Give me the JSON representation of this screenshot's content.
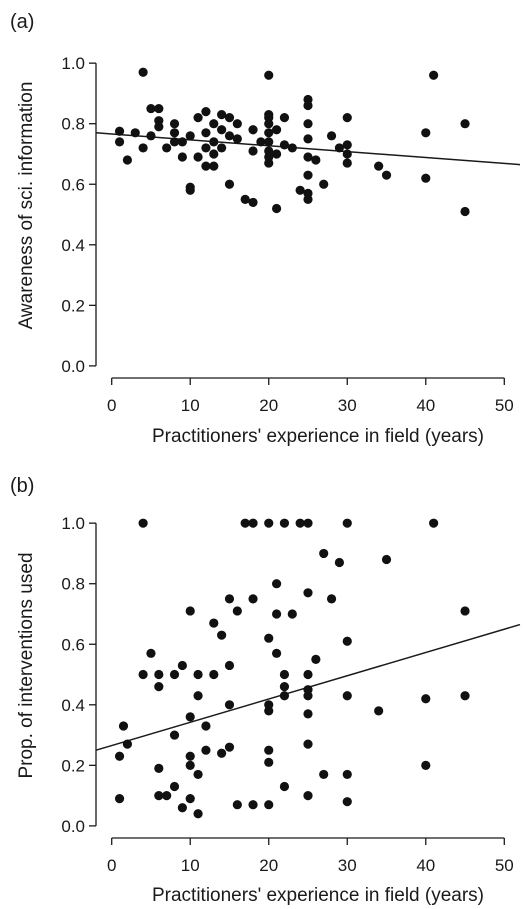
{
  "chart_data": [
    {
      "panel": "(a)",
      "type": "scatter",
      "xlabel": "Practitioners' experience in field (years)",
      "ylabel": "Awareness of sci. information",
      "xlim": [
        -2,
        52
      ],
      "ylim": [
        -0.04,
        1.06
      ],
      "xticks": [
        0,
        10,
        20,
        30,
        40,
        50
      ],
      "yticks": [
        0.0,
        0.2,
        0.4,
        0.6,
        0.8,
        1.0
      ],
      "ytick_labels": [
        "0.0",
        "0.2",
        "0.4",
        "0.6",
        "0.8",
        "1.0"
      ],
      "fit_line": {
        "x": [
          -2,
          52
        ],
        "y": [
          0.77,
          0.665
        ]
      },
      "points": [
        [
          1,
          0.775
        ],
        [
          1,
          0.74
        ],
        [
          2,
          0.68
        ],
        [
          3,
          0.77
        ],
        [
          4,
          0.97
        ],
        [
          4,
          0.72
        ],
        [
          5,
          0.85
        ],
        [
          5,
          0.76
        ],
        [
          6,
          0.85
        ],
        [
          6,
          0.81
        ],
        [
          6,
          0.79
        ],
        [
          7,
          0.72
        ],
        [
          8,
          0.8
        ],
        [
          8,
          0.77
        ],
        [
          8,
          0.74
        ],
        [
          9,
          0.74
        ],
        [
          9,
          0.69
        ],
        [
          10,
          0.76
        ],
        [
          10,
          0.58
        ],
        [
          10,
          0.59
        ],
        [
          11,
          0.82
        ],
        [
          11,
          0.69
        ],
        [
          12,
          0.84
        ],
        [
          12,
          0.77
        ],
        [
          12,
          0.66
        ],
        [
          12,
          0.72
        ],
        [
          13,
          0.8
        ],
        [
          13,
          0.74
        ],
        [
          13,
          0.66
        ],
        [
          13,
          0.7
        ],
        [
          14,
          0.83
        ],
        [
          14,
          0.78
        ],
        [
          14,
          0.72
        ],
        [
          15,
          0.82
        ],
        [
          15,
          0.76
        ],
        [
          15,
          0.6
        ],
        [
          16,
          0.8
        ],
        [
          16,
          0.75
        ],
        [
          17,
          0.55
        ],
        [
          18,
          0.78
        ],
        [
          18,
          0.71
        ],
        [
          18,
          0.54
        ],
        [
          19,
          0.74
        ],
        [
          20,
          0.96
        ],
        [
          20,
          0.83
        ],
        [
          20,
          0.82
        ],
        [
          20,
          0.8
        ],
        [
          20,
          0.77
        ],
        [
          20,
          0.74
        ],
        [
          20,
          0.71
        ],
        [
          20,
          0.69
        ],
        [
          20,
          0.67
        ],
        [
          21,
          0.78
        ],
        [
          21,
          0.7
        ],
        [
          21,
          0.52
        ],
        [
          22,
          0.82
        ],
        [
          22,
          0.73
        ],
        [
          23,
          0.72
        ],
        [
          24,
          0.58
        ],
        [
          25,
          0.88
        ],
        [
          25,
          0.86
        ],
        [
          25,
          0.8
        ],
        [
          25,
          0.75
        ],
        [
          25,
          0.69
        ],
        [
          25,
          0.63
        ],
        [
          25,
          0.57
        ],
        [
          25,
          0.55
        ],
        [
          26,
          0.68
        ],
        [
          27,
          0.6
        ],
        [
          28,
          0.76
        ],
        [
          29,
          0.72
        ],
        [
          30,
          0.82
        ],
        [
          30,
          0.73
        ],
        [
          30,
          0.7
        ],
        [
          30,
          0.67
        ],
        [
          34,
          0.66
        ],
        [
          35,
          0.63
        ],
        [
          40,
          0.77
        ],
        [
          40,
          0.62
        ],
        [
          41,
          0.96
        ],
        [
          45,
          0.8
        ],
        [
          45,
          0.51
        ]
      ]
    },
    {
      "panel": "(b)",
      "type": "scatter",
      "xlabel": "Practitioners' experience in field (years)",
      "ylabel": "Prop. of interventions used",
      "xlim": [
        -2,
        52
      ],
      "ylim": [
        -0.04,
        1.06
      ],
      "xticks": [
        0,
        10,
        20,
        30,
        40,
        50
      ],
      "yticks": [
        0.0,
        0.2,
        0.4,
        0.6,
        0.8,
        1.0
      ],
      "ytick_labels": [
        "0.0",
        "0.2",
        "0.4",
        "0.6",
        "0.8",
        "1.0"
      ],
      "fit_line": {
        "x": [
          -2,
          52
        ],
        "y": [
          0.25,
          0.665
        ]
      },
      "points": [
        [
          1,
          0.23
        ],
        [
          1,
          0.09
        ],
        [
          1.5,
          0.33
        ],
        [
          2,
          0.27
        ],
        [
          4,
          1.0
        ],
        [
          4,
          0.5
        ],
        [
          5,
          0.57
        ],
        [
          6,
          0.5
        ],
        [
          6,
          0.46
        ],
        [
          6,
          0.19
        ],
        [
          6,
          0.1
        ],
        [
          7,
          0.1
        ],
        [
          8,
          0.5
        ],
        [
          8,
          0.3
        ],
        [
          8,
          0.13
        ],
        [
          9,
          0.53
        ],
        [
          9,
          0.06
        ],
        [
          10,
          0.71
        ],
        [
          10,
          0.36
        ],
        [
          10,
          0.23
        ],
        [
          10,
          0.2
        ],
        [
          10,
          0.09
        ],
        [
          11,
          0.5
        ],
        [
          11,
          0.43
        ],
        [
          11,
          0.17
        ],
        [
          11,
          0.04
        ],
        [
          12,
          0.33
        ],
        [
          12,
          0.25
        ],
        [
          13,
          0.5
        ],
        [
          13,
          0.67
        ],
        [
          14,
          0.63
        ],
        [
          14,
          0.24
        ],
        [
          15,
          0.75
        ],
        [
          15,
          0.53
        ],
        [
          15,
          0.4
        ],
        [
          15,
          0.26
        ],
        [
          16,
          0.71
        ],
        [
          16,
          0.07
        ],
        [
          17,
          1.0
        ],
        [
          18,
          1.0
        ],
        [
          18,
          0.75
        ],
        [
          18,
          0.07
        ],
        [
          20,
          1.0
        ],
        [
          20,
          0.62
        ],
        [
          20,
          0.4
        ],
        [
          20,
          0.38
        ],
        [
          20,
          0.25
        ],
        [
          20,
          0.21
        ],
        [
          20,
          0.07
        ],
        [
          21,
          0.8
        ],
        [
          21,
          0.7
        ],
        [
          21,
          0.57
        ],
        [
          22,
          1.0
        ],
        [
          22,
          0.5
        ],
        [
          22,
          0.46
        ],
        [
          22,
          0.43
        ],
        [
          22,
          0.13
        ],
        [
          23,
          0.7
        ],
        [
          24,
          1.0
        ],
        [
          25,
          1.0
        ],
        [
          25,
          0.77
        ],
        [
          25,
          0.5
        ],
        [
          25,
          0.45
        ],
        [
          25,
          0.43
        ],
        [
          25,
          0.37
        ],
        [
          25,
          0.27
        ],
        [
          25,
          0.1
        ],
        [
          26,
          0.55
        ],
        [
          27,
          0.9
        ],
        [
          27,
          0.17
        ],
        [
          28,
          0.75
        ],
        [
          29,
          0.87
        ],
        [
          30,
          1.0
        ],
        [
          30,
          0.61
        ],
        [
          30,
          0.43
        ],
        [
          30,
          0.17
        ],
        [
          30,
          0.08
        ],
        [
          34,
          0.38
        ],
        [
          35,
          0.88
        ],
        [
          40,
          0.42
        ],
        [
          40,
          0.2
        ],
        [
          41,
          1.0
        ],
        [
          45,
          0.71
        ],
        [
          45,
          0.43
        ]
      ]
    }
  ]
}
